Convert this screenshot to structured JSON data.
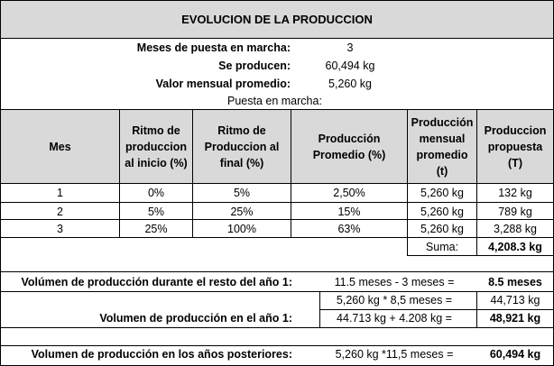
{
  "title": "EVOLUCION DE LA PRODUCCION",
  "summary": {
    "months_label": "Meses de puesta en marcha:",
    "months_value": "3",
    "produced_label": "Se producen:",
    "produced_value": "60,494 kg",
    "monthly_label": "Valor mensual promedio:",
    "monthly_value": "5,260 kg",
    "startup_label": "Puesta en marcha:"
  },
  "table": {
    "headers": [
      "Mes",
      "Ritmo de produccion al inicio (%)",
      "Ritmo de Produccion al final (%)",
      "Producción Promedio (%)",
      "Producción mensual promedio (t)",
      "Produccion propuesta (T)"
    ],
    "rows": [
      [
        "1",
        "0%",
        "5%",
        "2,50%",
        "5,260 kg",
        "132 kg"
      ],
      [
        "2",
        "5%",
        "25%",
        "15%",
        "5,260 kg",
        "789 kg"
      ],
      [
        "3",
        "25%",
        "100%",
        "63%",
        "5,260 kg",
        "3,288 kg"
      ]
    ],
    "sum_label": "Suma:",
    "sum_value": "4,208.3 kg"
  },
  "calc": {
    "rest_year1_label": "Volúmen de producción durante el resto del año 1:",
    "rest_year1_formula": "11.5 meses - 3 meses =",
    "rest_year1_value": "8.5 meses",
    "rest_year1_formula2": "5,260 kg * 8,5 meses =",
    "rest_year1_value2": "44,713 kg",
    "year1_label": "Volumen de producción en el año 1:",
    "year1_formula": "44.713 kg + 4.208 kg =",
    "year1_value": "48,921 kg",
    "later_label": "Volumen de producción en los años posteriores:",
    "later_formula": "5,260 kg *11,5 meses =",
    "later_value": "60,494 kg"
  }
}
